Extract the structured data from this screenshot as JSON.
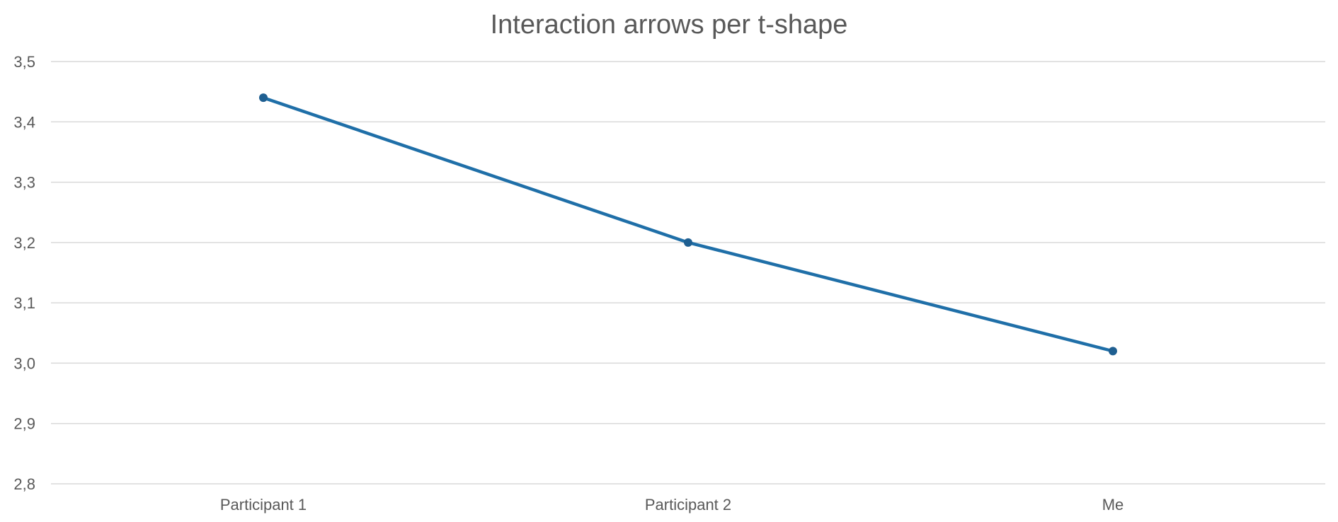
{
  "chart_data": {
    "type": "line",
    "title": "Interaction arrows per t-shape",
    "xlabel": "",
    "ylabel": "",
    "categories": [
      "Participant 1",
      "Participant 2",
      "Me"
    ],
    "series": [
      {
        "values": [
          3.44,
          3.2,
          3.02
        ],
        "color": "#1f6fa8"
      }
    ],
    "ylim": [
      2.8,
      3.5
    ],
    "yticks": [
      "2,8",
      "2,9",
      "3,0",
      "3,1",
      "3,2",
      "3,3",
      "3,4",
      "3,5"
    ],
    "grid": true,
    "legend": "none",
    "colors": {
      "line": "#1f6fa8",
      "marker": "#1f5f91",
      "grid": "#d9d9d9",
      "text": "#595959"
    }
  }
}
